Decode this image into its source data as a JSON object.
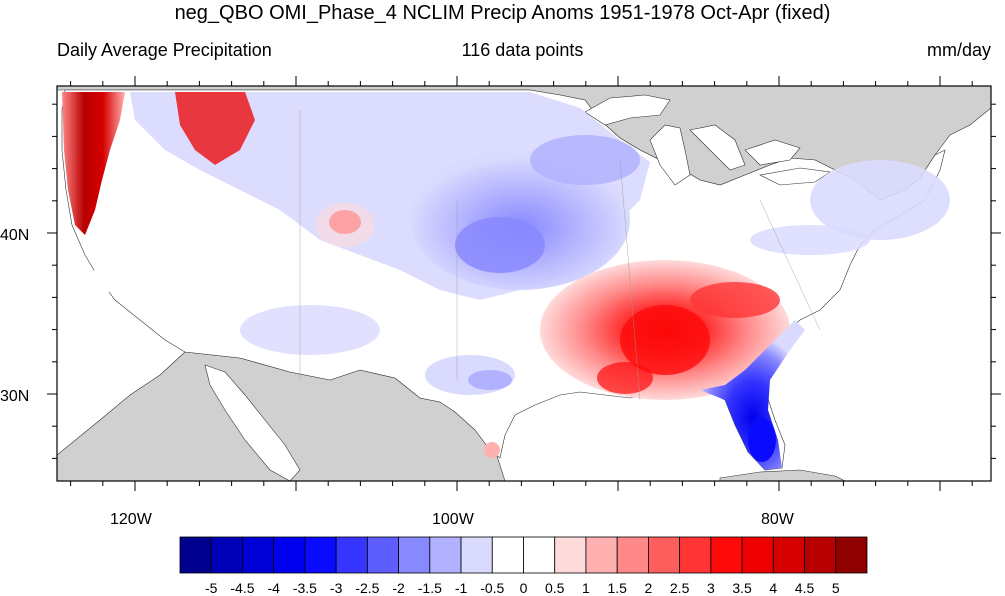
{
  "title": "neg_QBO OMI_Phase_4 NCLIM Precip Anoms 1951-1978 Oct-Apr (fixed)",
  "subtitle_left": "Daily Average Precipitation",
  "subtitle_center": "116 data points",
  "subtitle_right": "mm/day",
  "map": {
    "lat_labels": [
      "40N",
      "30N"
    ],
    "lon_labels": [
      "120W",
      "100W",
      "80W"
    ]
  },
  "colorbar": {
    "labels": [
      "-5",
      "-4.5",
      "-4",
      "-3.5",
      "-3",
      "-2.5",
      "-2",
      "-1.5",
      "-1",
      "-0.5",
      "0",
      "0.5",
      "1",
      "1.5",
      "2",
      "2.5",
      "3",
      "3.5",
      "4",
      "4.5",
      "5"
    ],
    "colors": [
      "#00008f",
      "#0000b8",
      "#0000d6",
      "#0000ee",
      "#0a0aff",
      "#3535ff",
      "#5e5eff",
      "#8888ff",
      "#b1b1ff",
      "#dadaff",
      "#ffffff",
      "#ffffff",
      "#ffdada",
      "#ffb1b1",
      "#ff8888",
      "#ff5e5e",
      "#ff3535",
      "#ff0a0a",
      "#ee0000",
      "#d60000",
      "#b80000",
      "#8f0000"
    ]
  }
}
